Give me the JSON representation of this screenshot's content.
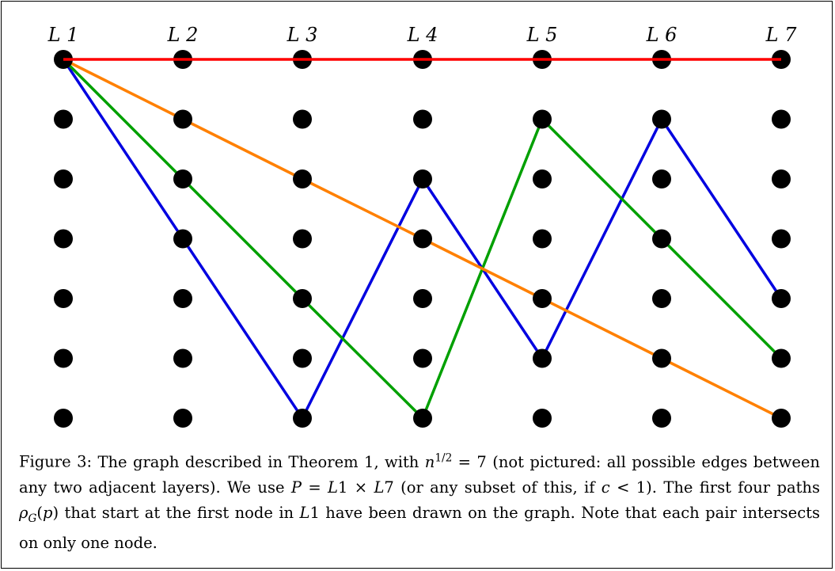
{
  "figure": {
    "layers": [
      {
        "label": "L 1"
      },
      {
        "label": "L 2"
      },
      {
        "label": "L 3"
      },
      {
        "label": "L 4"
      },
      {
        "label": "L 5"
      },
      {
        "label": "L 6"
      },
      {
        "label": "L 7"
      }
    ],
    "nodes_per_layer": 7,
    "node_color": "#000000",
    "paths": [
      {
        "color": "#ff0000",
        "rows": [
          1,
          1,
          1,
          1,
          1,
          1,
          1
        ]
      },
      {
        "color": "#ff8000",
        "rows": [
          1,
          2,
          3,
          4,
          5,
          6,
          7
        ]
      },
      {
        "color": "#00a000",
        "rows": [
          1,
          3,
          5,
          7,
          2,
          4,
          6
        ]
      },
      {
        "color": "#0000e0",
        "rows": [
          1,
          4,
          7,
          3,
          6,
          2,
          5
        ]
      }
    ]
  },
  "caption": {
    "figure_label": "Figure 3:",
    "text": "The graph described in Theorem 1, with n^{1/2} = 7 (not pictured: all possible edges between any two adjacent layers). We use P = L1 × L7 (or any subset of this, if c < 1). The first four paths ρ_G(p) that start at the first node in L1 have been drawn on the graph. Note that each pair intersects on only one node."
  }
}
